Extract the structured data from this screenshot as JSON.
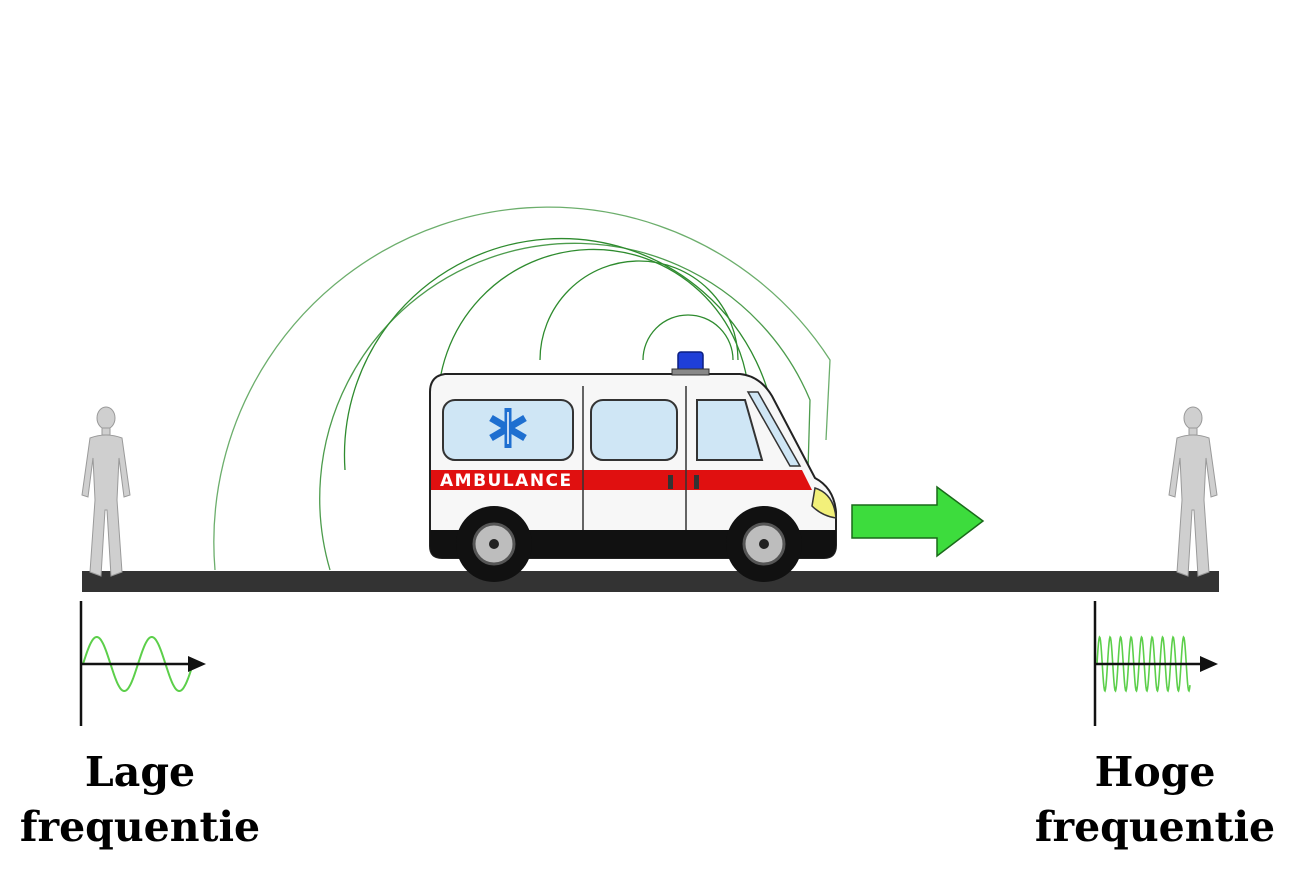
{
  "ambulance": {
    "side_text": "AMBULANCE"
  },
  "left_observer": {
    "label_line1": "Lage",
    "label_line2": "frequentie"
  },
  "right_observer": {
    "label_line1": "Hoge",
    "label_line2": "frequentie"
  },
  "colors": {
    "wavefront": "#2e8b2e",
    "wave_signal": "#5ccf4a",
    "motion_arrow": "#3ddc3d",
    "road": "#333333",
    "siren": "#1f3fd8",
    "stripe": "#e01010",
    "star_of_life": "#1e6fd0",
    "person": "#c8c8c8"
  },
  "icons": {
    "motion": "right-arrow-icon",
    "siren": "siren-light-icon",
    "emblem": "star-of-life-icon",
    "observer": "person-silhouette-icon"
  }
}
